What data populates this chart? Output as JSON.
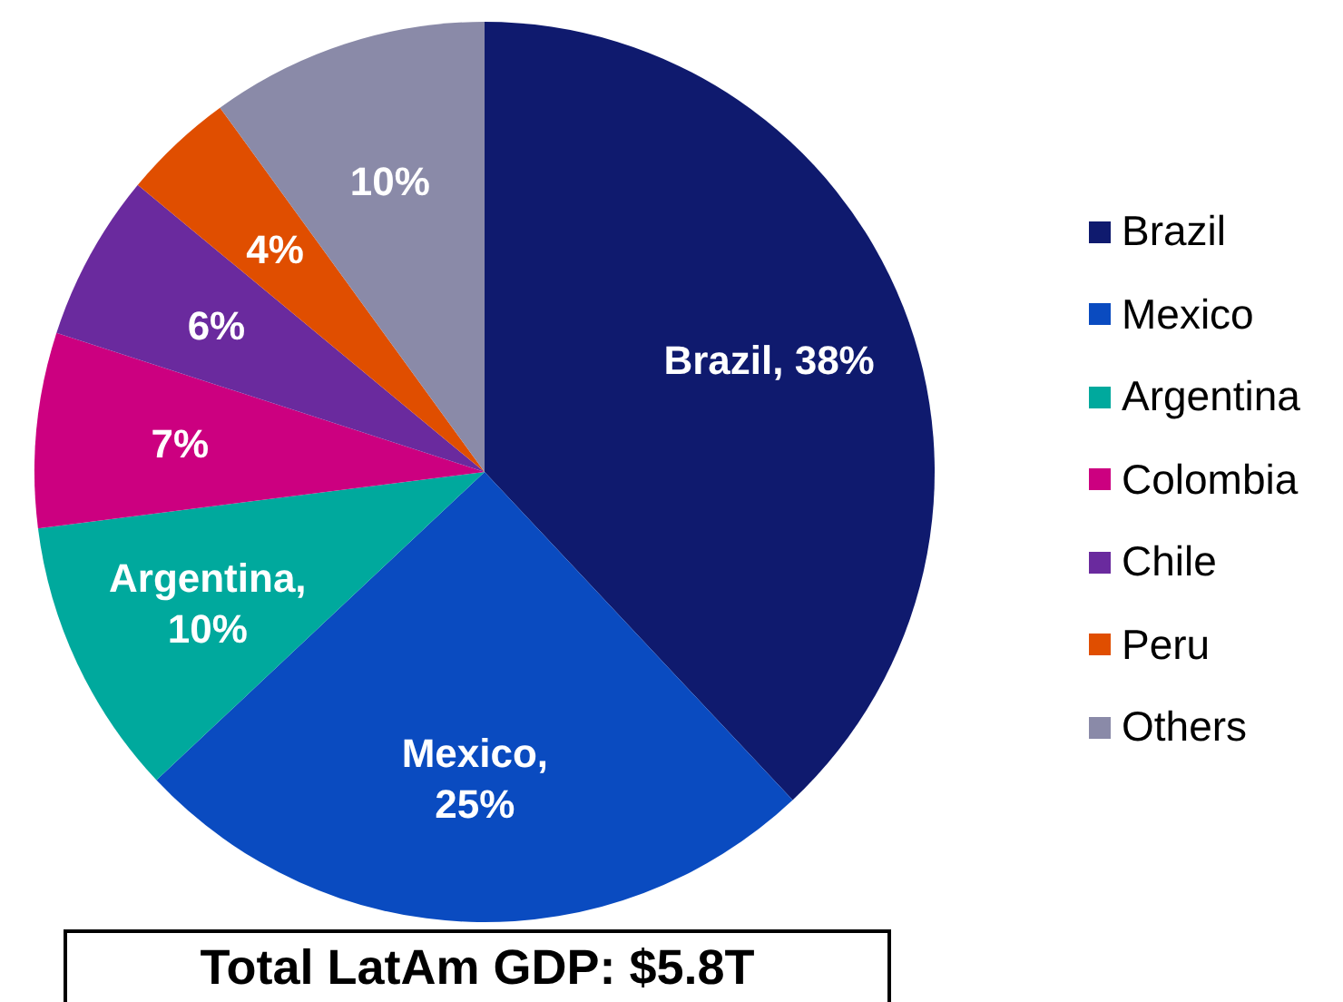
{
  "chart_data": {
    "type": "pie",
    "categories": [
      "Brazil",
      "Mexico",
      "Argentina",
      "Colombia",
      "Chile",
      "Peru",
      "Others"
    ],
    "values": [
      38,
      25,
      10,
      7,
      6,
      4,
      10
    ],
    "colors": [
      "#0f1a6e",
      "#0a4bc0",
      "#00a99d",
      "#cc0080",
      "#6a2a9e",
      "#e04e00",
      "#8a8aa8"
    ],
    "value_labels": [
      "Brazil, 38%",
      "Mexico,\n25%",
      "Argentina,\n10%",
      "7%",
      "6%",
      "4%",
      "10%"
    ],
    "legend": "right",
    "annotations": [
      "Total LatAm GDP: $5.8T"
    ]
  }
}
